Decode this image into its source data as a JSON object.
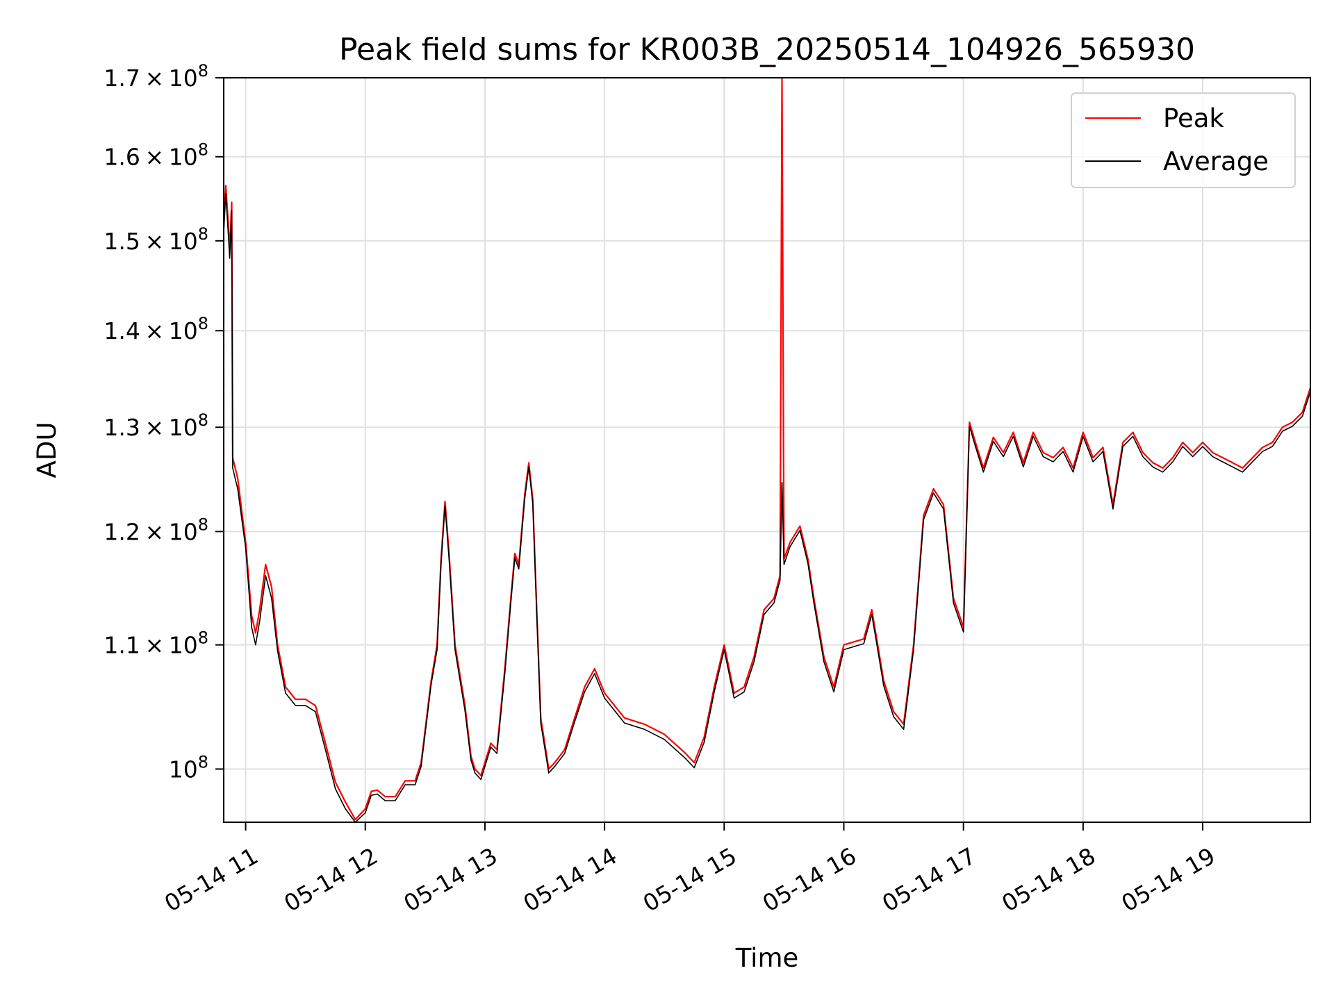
{
  "chart_data": {
    "type": "line",
    "title": "Peak field sums for KR003B_20250514_104926_565930",
    "xlabel": "Time",
    "ylabel": "ADU",
    "yscale": "log",
    "grid": true,
    "legend_position": "top-right",
    "xlim": [
      "2025-05-14 10:49",
      "2025-05-14 19:54"
    ],
    "ylim": [
      96000000,
      170000000
    ],
    "x_ticks": [
      "2025-05-14 11:00",
      "2025-05-14 12:00",
      "2025-05-14 13:00",
      "2025-05-14 14:00",
      "2025-05-14 15:00",
      "2025-05-14 16:00",
      "2025-05-14 17:00",
      "2025-05-14 18:00",
      "2025-05-14 19:00"
    ],
    "x_tick_labels": [
      "05-14 11",
      "05-14 12",
      "05-14 13",
      "05-14 14",
      "05-14 15",
      "05-14 16",
      "05-14 17",
      "05-14 18",
      "05-14 19"
    ],
    "y_ticks": [
      100000000,
      110000000,
      120000000,
      130000000,
      140000000,
      150000000,
      160000000,
      170000000
    ],
    "y_tick_mantissa": [
      "",
      "1.1",
      "1.2",
      "1.3",
      "1.4",
      "1.5",
      "1.6",
      "1.7"
    ],
    "y_tick_times": "×",
    "y_tick_base": "10",
    "y_tick_exponent": "8",
    "colors": {
      "Peak": "#ff0000",
      "Average": "#000000"
    },
    "series": [
      {
        "name": "Peak",
        "points": [
          [
            "10:49",
            152000000
          ],
          [
            "10:50",
            156500000
          ],
          [
            "10:51",
            153000000
          ],
          [
            "10:52",
            149000000
          ],
          [
            "10:53",
            154500000
          ],
          [
            "10:53.5",
            127000000
          ],
          [
            "10:56",
            125000000
          ],
          [
            "11:00",
            119000000
          ],
          [
            "11:03",
            112500000
          ],
          [
            "11:05",
            111000000
          ],
          [
            "11:07",
            113000000
          ],
          [
            "11:10",
            117000000
          ],
          [
            "11:13",
            115000000
          ],
          [
            "11:16",
            110000000
          ],
          [
            "11:20",
            106500000
          ],
          [
            "11:25",
            105500000
          ],
          [
            "11:30",
            105500000
          ],
          [
            "11:35",
            105000000
          ],
          [
            "11:40",
            102000000
          ],
          [
            "11:45",
            99000000
          ],
          [
            "11:50",
            97500000
          ],
          [
            "11:55",
            96200000
          ],
          [
            "12:00",
            97000000
          ],
          [
            "12:03",
            98300000
          ],
          [
            "12:06",
            98400000
          ],
          [
            "12:10",
            97900000
          ],
          [
            "12:15",
            97900000
          ],
          [
            "12:20",
            99100000
          ],
          [
            "12:25",
            99100000
          ],
          [
            "12:28",
            100500000
          ],
          [
            "12:30",
            103000000
          ],
          [
            "12:33",
            107000000
          ],
          [
            "12:36",
            110000000
          ],
          [
            "12:38",
            117500000
          ],
          [
            "12:40",
            122800000
          ],
          [
            "12:42",
            118000000
          ],
          [
            "12:45",
            110000000
          ],
          [
            "12:50",
            105000000
          ],
          [
            "12:53",
            101000000
          ],
          [
            "12:55",
            100000000
          ],
          [
            "12:58",
            99500000
          ],
          [
            "13:00",
            100500000
          ],
          [
            "13:03",
            102000000
          ],
          [
            "13:06",
            101500000
          ],
          [
            "13:10",
            108000000
          ],
          [
            "13:13",
            114000000
          ],
          [
            "13:15",
            118000000
          ],
          [
            "13:17",
            117000000
          ],
          [
            "13:20",
            123500000
          ],
          [
            "13:22",
            126500000
          ],
          [
            "13:24",
            123000000
          ],
          [
            "13:26",
            113000000
          ],
          [
            "13:28",
            104000000
          ],
          [
            "13:32",
            100000000
          ],
          [
            "13:35",
            100500000
          ],
          [
            "13:40",
            101500000
          ],
          [
            "13:45",
            104000000
          ],
          [
            "13:50",
            106500000
          ],
          [
            "13:55",
            108000000
          ],
          [
            "14:00",
            106000000
          ],
          [
            "14:10",
            104000000
          ],
          [
            "14:20",
            103500000
          ],
          [
            "14:30",
            102700000
          ],
          [
            "14:40",
            101300000
          ],
          [
            "14:45",
            100500000
          ],
          [
            "14:50",
            102500000
          ],
          [
            "14:55",
            106500000
          ],
          [
            "15:00",
            110000000
          ],
          [
            "15:05",
            106000000
          ],
          [
            "15:10",
            106500000
          ],
          [
            "15:15",
            109000000
          ],
          [
            "15:20",
            113000000
          ],
          [
            "15:25",
            114000000
          ],
          [
            "15:28",
            116000000
          ],
          [
            "15:29",
            170000000
          ],
          [
            "15:30",
            117500000
          ],
          [
            "15:33",
            119000000
          ],
          [
            "15:38",
            120500000
          ],
          [
            "15:42",
            117500000
          ],
          [
            "15:45",
            114000000
          ],
          [
            "15:50",
            109000000
          ],
          [
            "15:55",
            106500000
          ],
          [
            "16:00",
            110000000
          ],
          [
            "16:10",
            110500000
          ],
          [
            "16:14",
            113000000
          ],
          [
            "16:16",
            111000000
          ],
          [
            "16:20",
            107000000
          ],
          [
            "16:25",
            104500000
          ],
          [
            "16:30",
            103500000
          ],
          [
            "16:35",
            110000000
          ],
          [
            "16:40",
            121500000
          ],
          [
            "16:45",
            124000000
          ],
          [
            "16:50",
            122500000
          ],
          [
            "16:55",
            114000000
          ],
          [
            "17:00",
            111500000
          ],
          [
            "17:03",
            130500000
          ],
          [
            "17:06",
            128500000
          ],
          [
            "17:10",
            126000000
          ],
          [
            "17:15",
            129000000
          ],
          [
            "17:20",
            127500000
          ],
          [
            "17:25",
            129500000
          ],
          [
            "17:30",
            126500000
          ],
          [
            "17:35",
            129500000
          ],
          [
            "17:40",
            127500000
          ],
          [
            "17:45",
            127000000
          ],
          [
            "17:50",
            128000000
          ],
          [
            "17:55",
            126000000
          ],
          [
            "18:00",
            129500000
          ],
          [
            "18:05",
            127000000
          ],
          [
            "18:10",
            128000000
          ],
          [
            "18:15",
            122500000
          ],
          [
            "18:20",
            128500000
          ],
          [
            "18:25",
            129500000
          ],
          [
            "18:30",
            127500000
          ],
          [
            "18:35",
            126500000
          ],
          [
            "18:40",
            126000000
          ],
          [
            "18:45",
            127000000
          ],
          [
            "18:50",
            128500000
          ],
          [
            "18:55",
            127500000
          ],
          [
            "19:00",
            128500000
          ],
          [
            "19:05",
            127500000
          ],
          [
            "19:10",
            127000000
          ],
          [
            "19:15",
            126500000
          ],
          [
            "19:20",
            126000000
          ],
          [
            "19:25",
            127000000
          ],
          [
            "19:30",
            128000000
          ],
          [
            "19:35",
            128500000
          ],
          [
            "19:40",
            130000000
          ],
          [
            "19:45",
            130500000
          ],
          [
            "19:50",
            131500000
          ],
          [
            "19:54",
            134000000
          ]
        ]
      },
      {
        "name": "Average",
        "points": [
          [
            "10:49",
            151000000
          ],
          [
            "10:50",
            155500000
          ],
          [
            "10:51",
            152000000
          ],
          [
            "10:52",
            148000000
          ],
          [
            "10:53",
            153500000
          ],
          [
            "10:53.5",
            126000000
          ],
          [
            "10:56",
            124000000
          ],
          [
            "11:00",
            118500000
          ],
          [
            "11:03",
            111500000
          ],
          [
            "11:05",
            110000000
          ],
          [
            "11:07",
            112000000
          ],
          [
            "11:10",
            116000000
          ],
          [
            "11:13",
            114000000
          ],
          [
            "11:16",
            109500000
          ],
          [
            "11:20",
            106000000
          ],
          [
            "11:25",
            105000000
          ],
          [
            "11:30",
            105000000
          ],
          [
            "11:35",
            104500000
          ],
          [
            "11:40",
            101500000
          ],
          [
            "11:45",
            98500000
          ],
          [
            "11:50",
            97000000
          ],
          [
            "11:55",
            96000000
          ],
          [
            "12:00",
            96700000
          ],
          [
            "12:03",
            98000000
          ],
          [
            "12:06",
            98100000
          ],
          [
            "12:10",
            97600000
          ],
          [
            "12:15",
            97600000
          ],
          [
            "12:20",
            98800000
          ],
          [
            "12:25",
            98800000
          ],
          [
            "12:28",
            100200000
          ],
          [
            "12:30",
            102700000
          ],
          [
            "12:33",
            106700000
          ],
          [
            "12:36",
            109600000
          ],
          [
            "12:38",
            117000000
          ],
          [
            "12:40",
            122400000
          ],
          [
            "12:42",
            117500000
          ],
          [
            "12:45",
            109600000
          ],
          [
            "12:50",
            104600000
          ],
          [
            "12:53",
            100700000
          ],
          [
            "12:55",
            99700000
          ],
          [
            "12:58",
            99200000
          ],
          [
            "13:00",
            100200000
          ],
          [
            "13:03",
            101700000
          ],
          [
            "13:06",
            101200000
          ],
          [
            "13:10",
            107600000
          ],
          [
            "13:13",
            113600000
          ],
          [
            "13:15",
            117600000
          ],
          [
            "13:17",
            116600000
          ],
          [
            "13:20",
            123100000
          ],
          [
            "13:22",
            126100000
          ],
          [
            "13:24",
            122600000
          ],
          [
            "13:26",
            112600000
          ],
          [
            "13:28",
            103600000
          ],
          [
            "13:32",
            99700000
          ],
          [
            "13:35",
            100200000
          ],
          [
            "13:40",
            101200000
          ],
          [
            "13:45",
            103700000
          ],
          [
            "13:50",
            106100000
          ],
          [
            "13:55",
            107600000
          ],
          [
            "14:00",
            105600000
          ],
          [
            "14:10",
            103600000
          ],
          [
            "14:20",
            103100000
          ],
          [
            "14:30",
            102300000
          ],
          [
            "14:40",
            100900000
          ],
          [
            "14:45",
            100100000
          ],
          [
            "14:50",
            102100000
          ],
          [
            "14:55",
            106100000
          ],
          [
            "15:00",
            109600000
          ],
          [
            "15:05",
            105600000
          ],
          [
            "15:10",
            106100000
          ],
          [
            "15:15",
            108600000
          ],
          [
            "15:20",
            112600000
          ],
          [
            "15:25",
            113600000
          ],
          [
            "15:28",
            115600000
          ],
          [
            "15:29",
            124600000
          ],
          [
            "15:30",
            117000000
          ],
          [
            "15:33",
            118600000
          ],
          [
            "15:38",
            120100000
          ],
          [
            "15:42",
            117100000
          ],
          [
            "15:45",
            113600000
          ],
          [
            "15:50",
            108600000
          ],
          [
            "15:55",
            106100000
          ],
          [
            "16:00",
            109600000
          ],
          [
            "16:10",
            110100000
          ],
          [
            "16:14",
            112600000
          ],
          [
            "16:16",
            110600000
          ],
          [
            "16:20",
            106600000
          ],
          [
            "16:25",
            104100000
          ],
          [
            "16:30",
            103100000
          ],
          [
            "16:35",
            109600000
          ],
          [
            "16:40",
            121100000
          ],
          [
            "16:45",
            123600000
          ],
          [
            "16:50",
            122100000
          ],
          [
            "16:55",
            113600000
          ],
          [
            "17:00",
            111100000
          ],
          [
            "17:03",
            130100000
          ],
          [
            "17:06",
            128100000
          ],
          [
            "17:10",
            125600000
          ],
          [
            "17:15",
            128600000
          ],
          [
            "17:20",
            127100000
          ],
          [
            "17:25",
            129100000
          ],
          [
            "17:30",
            126100000
          ],
          [
            "17:35",
            129100000
          ],
          [
            "17:40",
            127100000
          ],
          [
            "17:45",
            126600000
          ],
          [
            "17:50",
            127600000
          ],
          [
            "17:55",
            125600000
          ],
          [
            "18:00",
            129100000
          ],
          [
            "18:05",
            126600000
          ],
          [
            "18:10",
            127600000
          ],
          [
            "18:15",
            122100000
          ],
          [
            "18:20",
            128100000
          ],
          [
            "18:25",
            129100000
          ],
          [
            "18:30",
            127100000
          ],
          [
            "18:35",
            126100000
          ],
          [
            "18:40",
            125600000
          ],
          [
            "18:45",
            126600000
          ],
          [
            "18:50",
            128100000
          ],
          [
            "18:55",
            127100000
          ],
          [
            "19:00",
            128100000
          ],
          [
            "19:05",
            127100000
          ],
          [
            "19:10",
            126600000
          ],
          [
            "19:15",
            126100000
          ],
          [
            "19:20",
            125600000
          ],
          [
            "19:25",
            126600000
          ],
          [
            "19:30",
            127600000
          ],
          [
            "19:35",
            128100000
          ],
          [
            "19:40",
            129600000
          ],
          [
            "19:45",
            130100000
          ],
          [
            "19:50",
            131100000
          ],
          [
            "19:54",
            133600000
          ]
        ]
      }
    ],
    "legend": [
      {
        "name": "Peak",
        "color": "#ff0000"
      },
      {
        "name": "Average",
        "color": "#000000"
      }
    ]
  }
}
